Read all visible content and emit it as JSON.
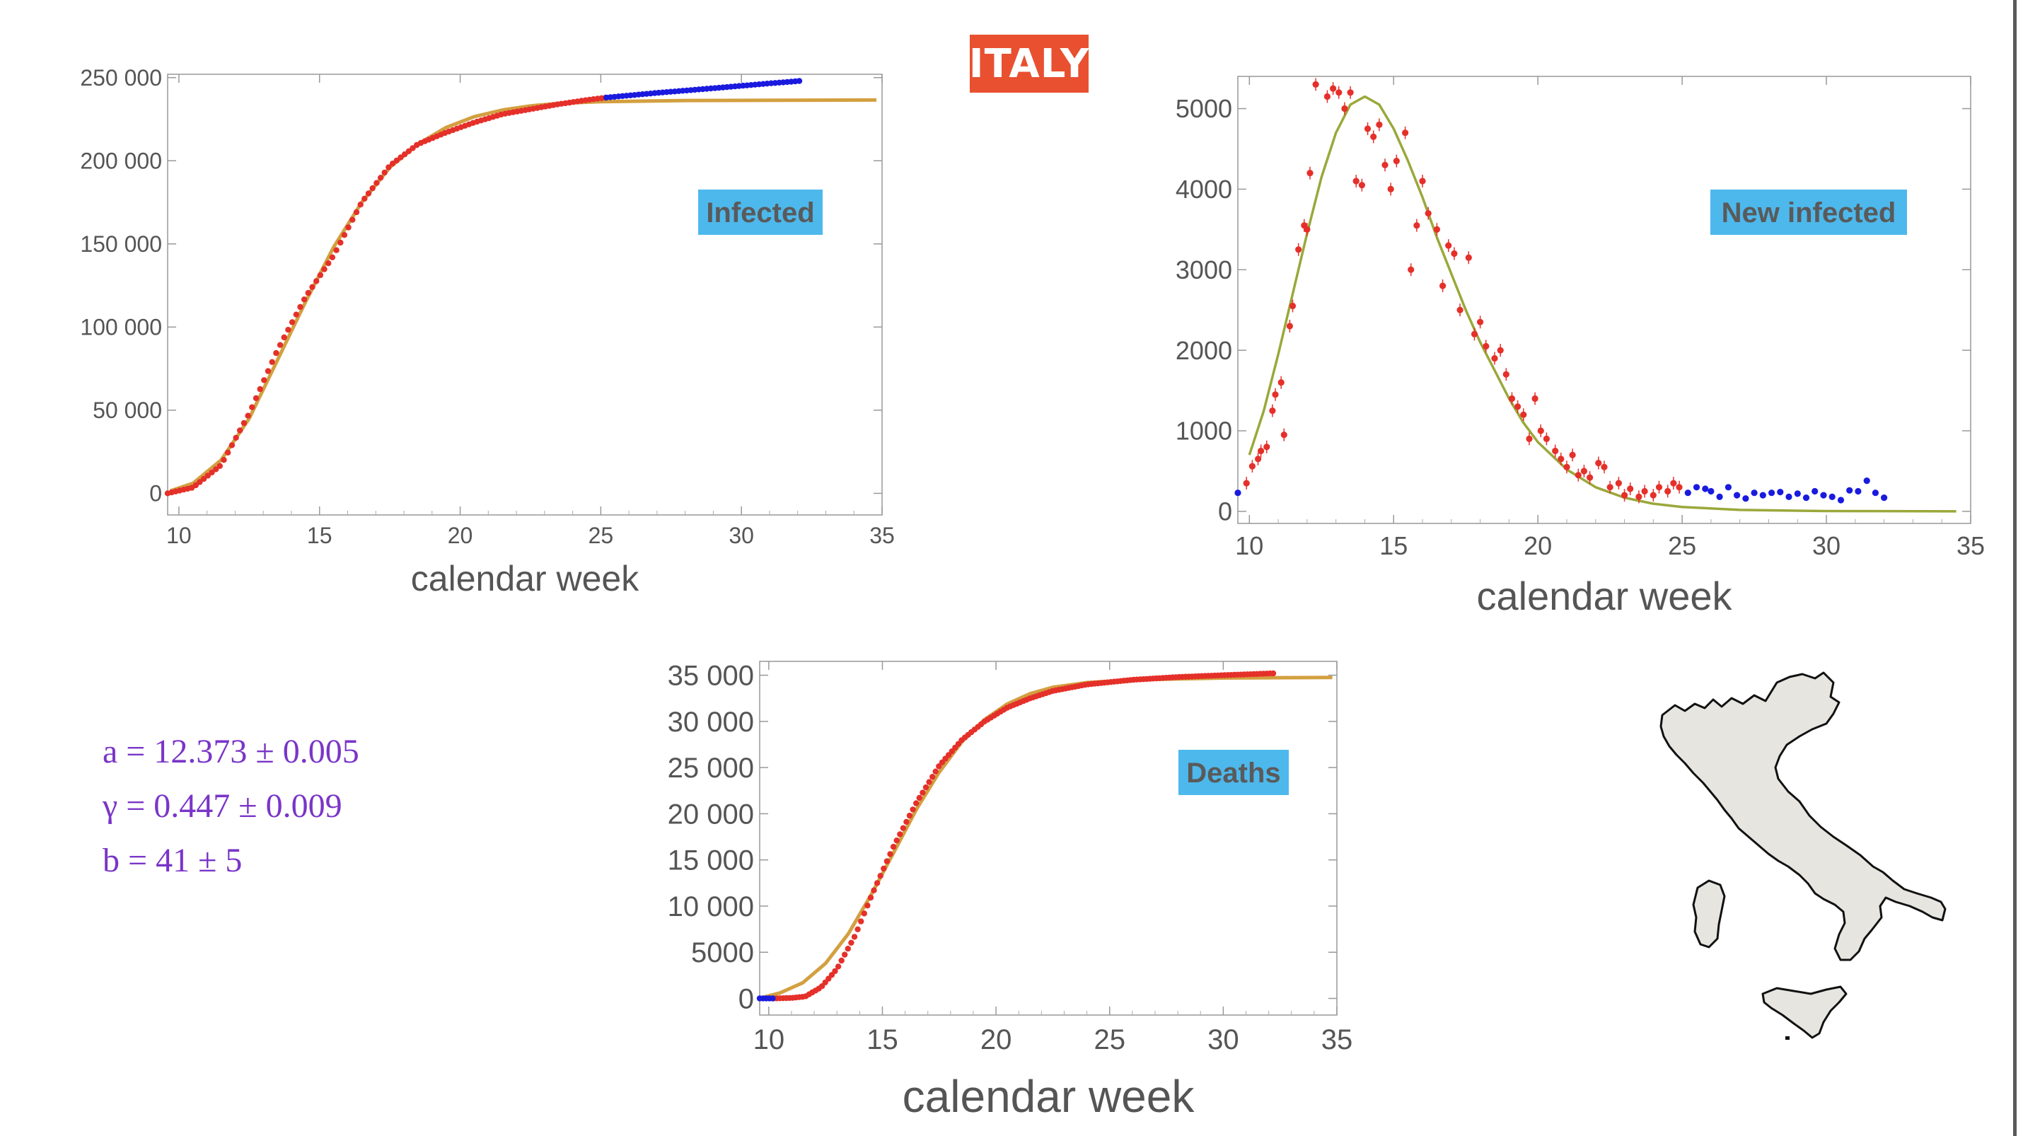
{
  "header": {
    "title": "ITALY",
    "title_color": "#e8502f"
  },
  "colors": {
    "fit_curve": "#d3a040",
    "fit_curve_new": "#9aa83a",
    "data_red": "#e5302a",
    "data_blue": "#1a1adf",
    "label_box": "#4db8ec",
    "label_text": "#5a5a5a",
    "param_text": "#7a35c8"
  },
  "params": [
    "a = 12.373 ± 0.005",
    "γ = 0.447 ± 0.009",
    "b = 41 ± 5"
  ],
  "chart_data": [
    {
      "id": "infected",
      "type": "scatter",
      "label": "Infected",
      "xlabel": "calendar week",
      "xlim": [
        9.6,
        35
      ],
      "ylim": [
        -13000,
        252000
      ],
      "xticks": [
        10,
        15,
        20,
        25,
        30,
        35
      ],
      "yticks": [
        0,
        50000,
        100000,
        150000,
        200000,
        250000
      ],
      "ytick_labels": [
        "0",
        "50 000",
        "100 000",
        "150 000",
        "200 000",
        "250 000"
      ],
      "series": [
        {
          "color": "red",
          "x_range": [
            9.6,
            25.2
          ],
          "points": [
            [
              9.6,
              0
            ],
            [
              10.5,
              3500
            ],
            [
              11.5,
              17000
            ],
            [
              12.5,
              48000
            ],
            [
              13.5,
              86000
            ],
            [
              14.5,
              118000
            ],
            [
              15.5,
              143000
            ],
            [
              16.5,
              175000
            ],
            [
              17.5,
              197000
            ],
            [
              18.5,
              210000
            ],
            [
              19.5,
              217000
            ],
            [
              20.5,
              223000
            ],
            [
              21.5,
              228000
            ],
            [
              22.5,
              231000
            ],
            [
              23.5,
              234000
            ],
            [
              24.5,
              236500
            ],
            [
              25.2,
              238000
            ]
          ]
        },
        {
          "color": "blue",
          "x_range": [
            25.2,
            32.1
          ],
          "points": [
            [
              25.2,
              238000
            ],
            [
              27,
              240800
            ],
            [
              29,
              243600
            ],
            [
              31,
              246500
            ],
            [
              32.1,
              248000
            ]
          ]
        }
      ],
      "fit": {
        "points": [
          [
            9.7,
            1500
          ],
          [
            10.5,
            6000
          ],
          [
            11.5,
            20000
          ],
          [
            12.5,
            45000
          ],
          [
            13.5,
            80000
          ],
          [
            14.5,
            115000
          ],
          [
            15.5,
            148000
          ],
          [
            16.5,
            175000
          ],
          [
            17.5,
            196000
          ],
          [
            18.5,
            210000
          ],
          [
            19.5,
            220000
          ],
          [
            20.5,
            226500
          ],
          [
            21.5,
            230500
          ],
          [
            22.5,
            233000
          ],
          [
            23.5,
            234500
          ],
          [
            25,
            235500
          ],
          [
            28,
            236200
          ],
          [
            34.8,
            236500
          ]
        ]
      }
    },
    {
      "id": "new-infected",
      "type": "scatter",
      "label": "New infected",
      "xlabel": "calendar week",
      "xlim": [
        9.6,
        35
      ],
      "ylim": [
        -150,
        5400
      ],
      "xticks": [
        10,
        15,
        20,
        25,
        30,
        35
      ],
      "yticks": [
        0,
        1000,
        2000,
        3000,
        4000,
        5000
      ],
      "ytick_labels": [
        "0",
        "1000",
        "2000",
        "3000",
        "4000",
        "5000"
      ],
      "series": [
        {
          "color": "red",
          "points": [
            [
              9.9,
              350
            ],
            [
              10.1,
              560
            ],
            [
              10.3,
              650
            ],
            [
              10.4,
              750
            ],
            [
              10.6,
              800
            ],
            [
              10.8,
              1250
            ],
            [
              10.9,
              1450
            ],
            [
              11.1,
              1600
            ],
            [
              11.2,
              950
            ],
            [
              11.4,
              2300
            ],
            [
              11.5,
              2550
            ],
            [
              11.7,
              3250
            ],
            [
              11.9,
              3550
            ],
            [
              12.0,
              3500
            ],
            [
              12.1,
              4200
            ],
            [
              12.3,
              5300
            ],
            [
              12.7,
              5150
            ],
            [
              12.9,
              5250
            ],
            [
              13.1,
              5200
            ],
            [
              13.3,
              5000
            ],
            [
              13.5,
              5200
            ],
            [
              13.7,
              4100
            ],
            [
              13.9,
              4050
            ],
            [
              14.1,
              4750
            ],
            [
              14.3,
              4650
            ],
            [
              14.5,
              4800
            ],
            [
              14.7,
              4300
            ],
            [
              14.9,
              4000
            ],
            [
              15.1,
              4350
            ],
            [
              15.4,
              4700
            ],
            [
              15.6,
              3000
            ],
            [
              15.8,
              3550
            ],
            [
              16.0,
              4100
            ],
            [
              16.2,
              3700
            ],
            [
              16.5,
              3500
            ],
            [
              16.7,
              2800
            ],
            [
              16.9,
              3300
            ],
            [
              17.1,
              3200
            ],
            [
              17.3,
              2500
            ],
            [
              17.6,
              3150
            ],
            [
              17.8,
              2200
            ],
            [
              18.0,
              2350
            ],
            [
              18.2,
              2050
            ],
            [
              18.5,
              1900
            ],
            [
              18.7,
              2000
            ],
            [
              18.9,
              1700
            ],
            [
              19.1,
              1400
            ],
            [
              19.3,
              1300
            ],
            [
              19.5,
              1200
            ],
            [
              19.7,
              900
            ],
            [
              19.9,
              1400
            ],
            [
              20.1,
              1000
            ],
            [
              20.3,
              900
            ],
            [
              20.6,
              750
            ],
            [
              20.8,
              650
            ],
            [
              21.0,
              550
            ],
            [
              21.2,
              700
            ],
            [
              21.4,
              450
            ],
            [
              21.6,
              500
            ],
            [
              21.8,
              420
            ],
            [
              22.1,
              600
            ],
            [
              22.3,
              550
            ],
            [
              22.5,
              300
            ],
            [
              22.8,
              350
            ],
            [
              23.0,
              200
            ],
            [
              23.2,
              280
            ],
            [
              23.5,
              180
            ],
            [
              23.7,
              250
            ],
            [
              24.0,
              200
            ],
            [
              24.2,
              300
            ],
            [
              24.5,
              250
            ],
            [
              24.7,
              350
            ],
            [
              24.9,
              300
            ]
          ]
        },
        {
          "color": "blue",
          "points": [
            [
              9.6,
              230
            ],
            [
              25.2,
              230
            ],
            [
              25.5,
              300
            ],
            [
              25.8,
              280
            ],
            [
              26.0,
              250
            ],
            [
              26.3,
              180
            ],
            [
              26.6,
              300
            ],
            [
              26.9,
              200
            ],
            [
              27.2,
              160
            ],
            [
              27.5,
              230
            ],
            [
              27.8,
              200
            ],
            [
              28.1,
              230
            ],
            [
              28.4,
              240
            ],
            [
              28.7,
              180
            ],
            [
              29.0,
              220
            ],
            [
              29.3,
              170
            ],
            [
              29.6,
              250
            ],
            [
              29.9,
              200
            ],
            [
              30.2,
              180
            ],
            [
              30.5,
              140
            ],
            [
              30.8,
              260
            ],
            [
              31.1,
              250
            ],
            [
              31.4,
              380
            ],
            [
              31.7,
              230
            ],
            [
              32.0,
              170
            ]
          ]
        }
      ],
      "fit": {
        "points": [
          [
            10.0,
            700
          ],
          [
            10.5,
            1250
          ],
          [
            11.0,
            1950
          ],
          [
            11.5,
            2700
          ],
          [
            12.0,
            3450
          ],
          [
            12.5,
            4150
          ],
          [
            13.0,
            4700
          ],
          [
            13.5,
            5050
          ],
          [
            14.0,
            5150
          ],
          [
            14.5,
            5050
          ],
          [
            15.0,
            4750
          ],
          [
            15.5,
            4350
          ],
          [
            16.0,
            3900
          ],
          [
            16.5,
            3400
          ],
          [
            17.0,
            2950
          ],
          [
            17.5,
            2500
          ],
          [
            18.0,
            2100
          ],
          [
            18.5,
            1750
          ],
          [
            19.0,
            1400
          ],
          [
            19.5,
            1100
          ],
          [
            20.0,
            860
          ],
          [
            21.0,
            520
          ],
          [
            22.0,
            300
          ],
          [
            23.0,
            170
          ],
          [
            24.0,
            95
          ],
          [
            25.0,
            55
          ],
          [
            27.0,
            18
          ],
          [
            30.0,
            4
          ],
          [
            34.5,
            0
          ]
        ]
      }
    },
    {
      "id": "deaths",
      "type": "scatter",
      "label": "Deaths",
      "xlabel": "calendar week",
      "xlim": [
        9.6,
        35
      ],
      "ylim": [
        -1800,
        36500
      ],
      "xticks": [
        10,
        15,
        20,
        25,
        30,
        35
      ],
      "yticks": [
        0,
        5000,
        10000,
        15000,
        20000,
        25000,
        30000,
        35000
      ],
      "ytick_labels": [
        "0",
        "5000",
        "10 000",
        "15 000",
        "20 000",
        "25 000",
        "30 000",
        "35 000"
      ],
      "series": [
        {
          "color": "red",
          "points": [
            [
              10.2,
              0
            ],
            [
              11,
              50
            ],
            [
              11.6,
              200
            ],
            [
              12.3,
              1200
            ],
            [
              13,
              3200
            ],
            [
              13.8,
              6800
            ],
            [
              14.5,
              11000
            ],
            [
              15.5,
              16500
            ],
            [
              16.5,
              21200
            ],
            [
              17.5,
              25200
            ],
            [
              18.5,
              28000
            ],
            [
              19.5,
              30000
            ],
            [
              20.5,
              31500
            ],
            [
              21.5,
              32500
            ],
            [
              22.5,
              33300
            ],
            [
              24,
              34000
            ],
            [
              26,
              34500
            ],
            [
              28,
              34800
            ],
            [
              30,
              35000
            ],
            [
              32.2,
              35200
            ]
          ]
        },
        {
          "color": "blue",
          "points": [
            [
              9.6,
              0
            ],
            [
              10.2,
              0
            ]
          ]
        }
      ],
      "fit": {
        "points": [
          [
            9.8,
            150
          ],
          [
            10.5,
            600
          ],
          [
            11.5,
            1700
          ],
          [
            12.5,
            3800
          ],
          [
            13.5,
            7000
          ],
          [
            14.5,
            11200
          ],
          [
            15.5,
            15800
          ],
          [
            16.5,
            20500
          ],
          [
            17.5,
            24500
          ],
          [
            18.5,
            27800
          ],
          [
            19.5,
            30200
          ],
          [
            20.5,
            31900
          ],
          [
            21.5,
            33000
          ],
          [
            22.5,
            33700
          ],
          [
            24,
            34200
          ],
          [
            26,
            34500
          ],
          [
            30,
            34700
          ],
          [
            34.8,
            34750
          ]
        ]
      }
    }
  ]
}
